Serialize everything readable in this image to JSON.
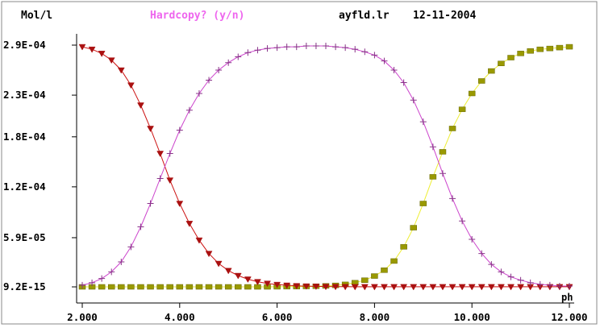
{
  "header": {
    "unit_label": "Mol/l",
    "prompt": "Hardcopy? (y/n)",
    "file_name": "ayfld.lr",
    "date": "12-11-2004"
  },
  "colors": {
    "prompt": "#ee66ee",
    "axis": "#000000",
    "frame": "#888888",
    "red_curve": "#cc1111",
    "red_marker": "#aa1111",
    "magenta_curve": "#cc44cc",
    "magenta_marker": "#883388",
    "yellow_curve": "#eeee33",
    "yellow_marker": "#999900"
  },
  "chart_data": {
    "type": "line",
    "xlabel": "ph",
    "ylabel": "Mol/l",
    "title": "",
    "xlim": [
      2.0,
      12.0
    ],
    "ylim": [
      0,
      0.00029
    ],
    "x_ticks": [
      {
        "value": 2,
        "label": "2.000"
      },
      {
        "value": 4,
        "label": "4.000"
      },
      {
        "value": 6,
        "label": "6.000"
      },
      {
        "value": 8,
        "label": "8.000"
      },
      {
        "value": 10,
        "label": "10.000"
      },
      {
        "value": 12,
        "label": "12.000"
      }
    ],
    "y_ticks": [
      {
        "value": 0.0,
        "label": "9.2E-15"
      },
      {
        "value": 5.9e-05,
        "label": "5.9E-05"
      },
      {
        "value": 0.00012,
        "label": "1.2E-04"
      },
      {
        "value": 0.00018,
        "label": "1.8E-04"
      },
      {
        "value": 0.00023,
        "label": "2.3E-04"
      },
      {
        "value": 0.00029,
        "label": "2.9E-04"
      }
    ],
    "grid": false,
    "x": [
      2.0,
      2.2,
      2.4,
      2.6,
      2.8,
      3.0,
      3.2,
      3.4,
      3.6,
      3.8,
      4.0,
      4.2,
      4.4,
      4.6,
      4.8,
      5.0,
      5.2,
      5.4,
      5.6,
      5.8,
      6.0,
      6.2,
      6.4,
      6.6,
      6.8,
      7.0,
      7.2,
      7.4,
      7.6,
      7.8,
      8.0,
      8.2,
      8.4,
      8.6,
      8.8,
      9.0,
      9.2,
      9.4,
      9.6,
      9.8,
      10.0,
      10.2,
      10.4,
      10.6,
      10.8,
      11.0,
      11.2,
      11.4,
      11.6,
      11.8,
      12.0
    ],
    "series": [
      {
        "marker": "triangle-down",
        "color_key": "red",
        "values": [
          0.000288,
          0.000285,
          0.00028,
          0.000272,
          0.00026,
          0.000242,
          0.000218,
          0.00019,
          0.00016,
          0.000128,
          0.0001,
          7.6e-05,
          5.6e-05,
          4e-05,
          2.8e-05,
          1.95e-05,
          1.35e-05,
          9.2e-06,
          6.2e-06,
          4.2e-06,
          2.8e-06,
          1.9e-06,
          1.3e-06,
          9e-07,
          6e-07,
          4e-07,
          3e-07,
          2e-07,
          1e-07,
          1e-07,
          1e-07,
          1e-07,
          1e-07,
          1e-07,
          1e-07,
          1e-07,
          1e-07,
          1e-07,
          1e-07,
          1e-07,
          1e-07,
          1e-07,
          1e-07,
          1e-07,
          1e-07,
          1e-07,
          1e-07,
          1e-07,
          1e-07,
          1e-07,
          1e-07
        ]
      },
      {
        "marker": "plus",
        "color_key": "magenta",
        "values": [
          2e-06,
          5e-06,
          1e-05,
          1.8e-05,
          3e-05,
          4.8e-05,
          7.2e-05,
          0.0001,
          0.00013,
          0.00016,
          0.000188,
          0.000212,
          0.000232,
          0.000248,
          0.00026,
          0.000269,
          0.000276,
          0.000281,
          0.000284,
          0.000286,
          0.000287,
          0.000288,
          0.000288,
          0.000289,
          0.000289,
          0.000289,
          0.000288,
          0.000287,
          0.000285,
          0.000282,
          0.000278,
          0.000271,
          0.00026,
          0.000245,
          0.000224,
          0.000198,
          0.000168,
          0.000136,
          0.000106,
          7.9e-05,
          5.7e-05,
          4e-05,
          2.7e-05,
          1.8e-05,
          1.2e-05,
          8e-06,
          5e-06,
          3e-06,
          2e-06,
          1e-06,
          1e-06
        ]
      },
      {
        "marker": "square",
        "color_key": "yellow",
        "values": [
          0.0,
          0.0,
          0.0,
          0.0,
          0.0,
          0.0,
          0.0,
          0.0,
          0.0,
          0.0,
          0.0,
          0.0,
          0.0,
          0.0,
          0.0,
          0.0,
          0.0,
          0.0,
          0.0,
          0.0,
          1e-07,
          2e-07,
          3e-07,
          5e-07,
          8e-07,
          1.2e-06,
          1.8e-06,
          3e-06,
          5e-06,
          8e-06,
          1.3e-05,
          2e-05,
          3.1e-05,
          4.8e-05,
          7.1e-05,
          0.0001,
          0.000132,
          0.000162,
          0.00019,
          0.000213,
          0.000232,
          0.000247,
          0.000259,
          0.000268,
          0.000275,
          0.00028,
          0.000283,
          0.000285,
          0.000286,
          0.000287,
          0.000288
        ]
      }
    ]
  }
}
